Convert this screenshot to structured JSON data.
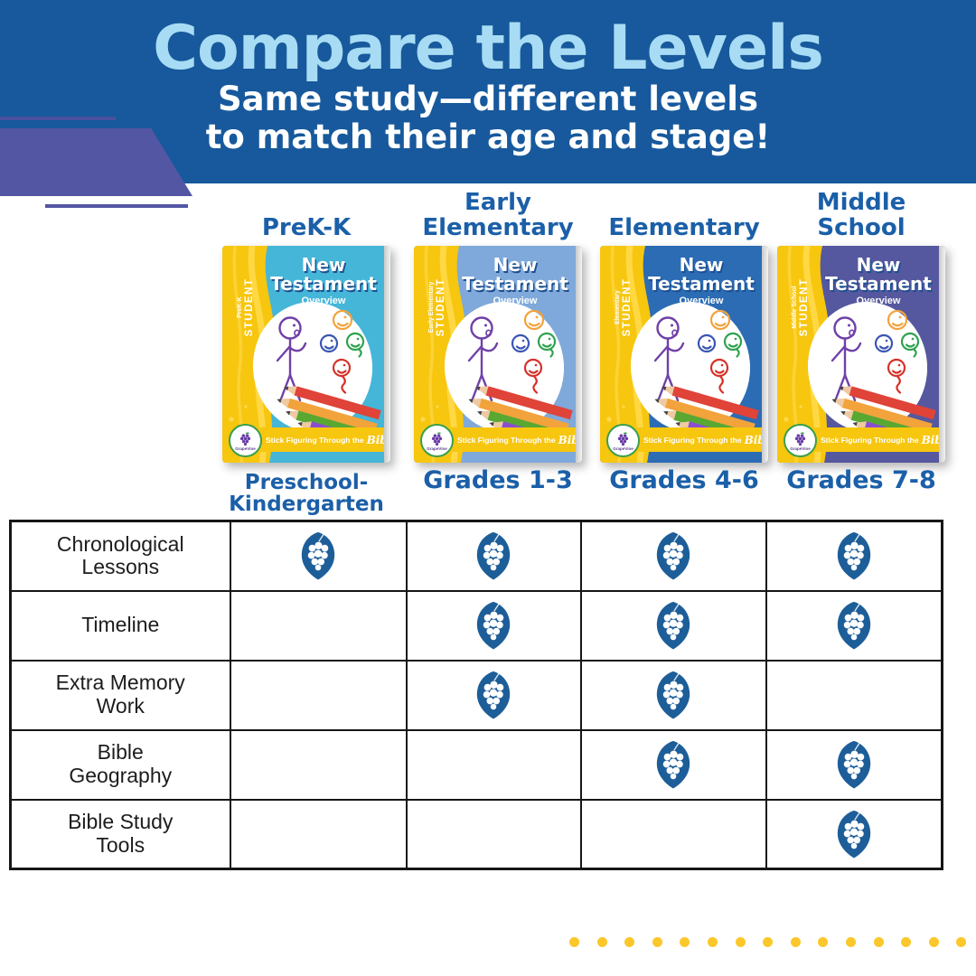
{
  "header": {
    "title": "Compare the Levels",
    "subtitle_line1": "Same study—different levels",
    "subtitle_line2": "to match their age and stage!",
    "bg_color": "#17599c",
    "title_color": "#a8dcf4",
    "accent_color": "#5356a3"
  },
  "levels": [
    {
      "name": "PreK-K",
      "grades": "Preschool-Kindergarten",
      "band_label": "PreK-K",
      "cover_color": "#45b6d8"
    },
    {
      "name": "Early Elementary",
      "grades": "Grades 1-3",
      "band_label": "Early Elementary",
      "cover_color": "#7fa9da"
    },
    {
      "name": "Elementary",
      "grades": "Grades 4-6",
      "band_label": "Elementary",
      "cover_color": "#2b6cb4"
    },
    {
      "name": "Middle School",
      "grades": "Grades 7-8",
      "band_label": "Middle School",
      "cover_color": "#55589e"
    }
  ],
  "book": {
    "title_line1": "New",
    "title_line2": "Testament",
    "subtitle": "Overview",
    "student_label": "STUDENT",
    "footer_text": "Stick Figuring Through the",
    "footer_script": "Bible!",
    "logo_text": "GrapeVine",
    "band_yellow": "#f7c60f"
  },
  "table": {
    "columns": [
      "PreK-K",
      "Early Elementary",
      "Elementary",
      "Middle School"
    ],
    "rows": [
      {
        "label": "Chronological Lessons",
        "cells": [
          true,
          true,
          true,
          true
        ]
      },
      {
        "label": "Timeline",
        "cells": [
          false,
          true,
          true,
          true
        ]
      },
      {
        "label": "Extra Memory Work",
        "cells": [
          false,
          true,
          true,
          false
        ]
      },
      {
        "label": "Bible Geography",
        "cells": [
          false,
          false,
          true,
          true
        ]
      },
      {
        "label": "Bible Study Tools",
        "cells": [
          false,
          false,
          false,
          true
        ]
      }
    ],
    "grape_color": "#1d5e99",
    "border_color": "#161616"
  },
  "decoration": {
    "dot_count": 15,
    "dot_color": "#fcc72a"
  }
}
